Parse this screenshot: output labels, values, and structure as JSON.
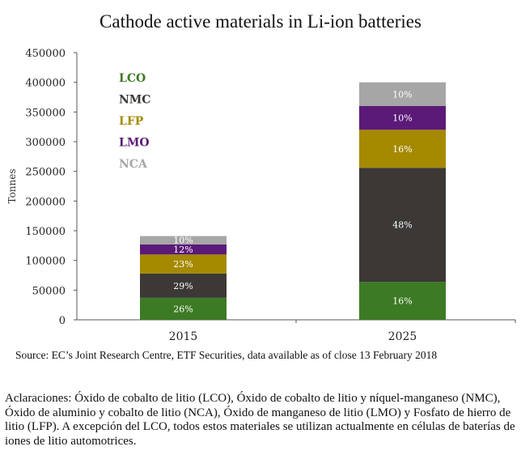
{
  "chart_data": {
    "type": "bar",
    "stacked": true,
    "title": "Cathode active materials in Li-ion batteries",
    "xlabel": "",
    "ylabel": "Tonnes",
    "ylim": [
      0,
      450000
    ],
    "yticks": [
      0,
      50000,
      100000,
      150000,
      200000,
      250000,
      300000,
      350000,
      400000,
      450000
    ],
    "ytick_labels": [
      "0",
      "50000",
      "100000",
      "150000",
      "200000",
      "250000",
      "300000",
      "350000",
      "400000",
      "450000"
    ],
    "categories": [
      "2015",
      "2025"
    ],
    "grid": false,
    "legend_position": "top-left",
    "series": [
      {
        "name": "LCO",
        "color": "#3d7a24",
        "values": [
          37000,
          64000
        ],
        "labels": [
          "26%",
          "16%"
        ]
      },
      {
        "name": "NMC",
        "color": "#3b3836",
        "values": [
          41000,
          192000
        ],
        "labels": [
          "29%",
          "48%"
        ]
      },
      {
        "name": "LFP",
        "color": "#a58a00",
        "values": [
          32000,
          64000
        ],
        "labels": [
          "23%",
          "16%"
        ]
      },
      {
        "name": "LMO",
        "color": "#5b1a78",
        "values": [
          17000,
          40000
        ],
        "labels": [
          "12%",
          "10%"
        ]
      },
      {
        "name": "NCA",
        "color": "#a6a6a6",
        "values": [
          14000,
          40000
        ],
        "labels": [
          "10%",
          "10%"
        ]
      }
    ]
  },
  "source": "Source: EC’s Joint Research Centre, ETF Securities, data available as of close 13 February 2018",
  "notes": "Aclaraciones: Óxido de cobalto de litio (LCO), Óxido de cobalto de litio y níquel-manganeso (NMC), Óxido de aluminio y cobalto de litio (NCA), Óxido de manganeso de litio (LMO) y Fosfato de hierro de litio (LFP). A excepción del LCO, todos estos materiales se utilizan actualmente en células de baterías de iones de litio automotrices."
}
